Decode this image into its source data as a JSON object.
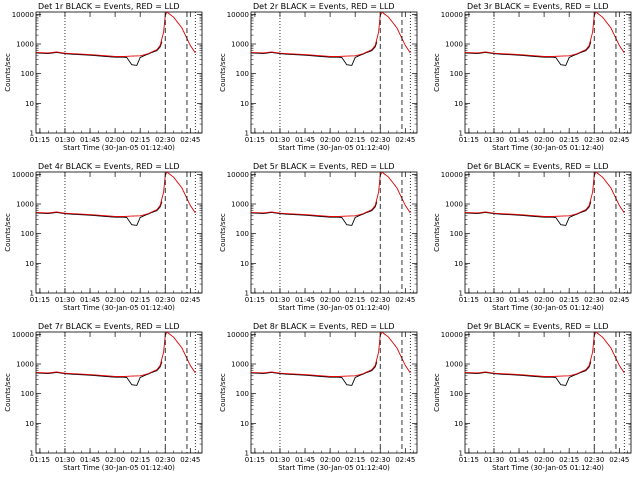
{
  "figure": {
    "background": "#ffffff",
    "event_color": "#000000",
    "lld_color": "#e00000"
  },
  "x_tick_labels": [
    "01:15",
    "01:30",
    "01:45",
    "02:00",
    "02:15",
    "02:30",
    "02:45"
  ],
  "y_tick_labels": [
    "1",
    "10",
    "100",
    "1000",
    "10000"
  ],
  "chart_data": [
    {
      "type": "line",
      "title": "Det 1r BLACK = Events, RED = LLD",
      "xlabel": "Start Time (30-Jan-05 01:12:40)",
      "ylabel": "Counts/sec",
      "ylog": true,
      "ylim": [
        1,
        12000
      ],
      "xlim_minutes": [
        "01:12:40",
        "02:52:00"
      ],
      "series": [
        {
          "name": "Events",
          "color": "#000000",
          "x": [
            "01:12:40",
            "01:20",
            "01:25",
            "01:30",
            "01:35",
            "01:45",
            "01:55",
            "02:00",
            "02:05",
            "02:07",
            "02:10",
            "02:13",
            "02:15",
            "02:18",
            "02:20",
            "02:22",
            "02:25",
            "02:27",
            "02:28"
          ],
          "y": [
            500,
            480,
            520,
            470,
            450,
            420,
            380,
            360,
            360,
            350,
            200,
            190,
            350,
            420,
            460,
            520,
            600,
            800,
            1200
          ]
        },
        {
          "name": "LLD",
          "color": "#e00000",
          "x": [
            "01:12:40",
            "01:20",
            "01:25",
            "01:30",
            "01:35",
            "01:45",
            "01:55",
            "02:00",
            "02:05",
            "02:10",
            "02:15",
            "02:18",
            "02:20",
            "02:22",
            "02:25",
            "02:27",
            "02:29",
            "02:30",
            "02:31",
            "02:35",
            "02:40",
            "02:45",
            "02:48"
          ],
          "y": [
            520,
            500,
            540,
            490,
            470,
            440,
            400,
            380,
            380,
            390,
            400,
            440,
            480,
            540,
            650,
            900,
            2500,
            9000,
            12000,
            8000,
            3500,
            900,
            500
          ]
        }
      ],
      "vlines_dotted": [
        "01:30",
        "02:48"
      ],
      "vlines_dashed": [
        "02:30",
        "02:43"
      ]
    },
    {
      "type": "line",
      "title": "Det 2r BLACK = Events, RED = LLD",
      "xlabel": "Start Time (30-Jan-05 01:12:40)",
      "ylabel": "Counts/sec"
    },
    {
      "type": "line",
      "title": "Det 3r BLACK = Events, RED = LLD",
      "xlabel": "Start Time (30-Jan-05 01:12:40)",
      "ylabel": "Counts/sec"
    },
    {
      "type": "line",
      "title": "Det 4r BLACK = Events, RED = LLD",
      "xlabel": "Start Time (30-Jan-05 01:12:40)",
      "ylabel": "Counts/sec"
    },
    {
      "type": "line",
      "title": "Det 5r BLACK = Events, RED = LLD",
      "xlabel": "Start Time (30-Jan-05 01:12:40)",
      "ylabel": "Counts/sec"
    },
    {
      "type": "line",
      "title": "Det 6r BLACK = Events, RED = LLD",
      "xlabel": "Start Time (30-Jan-05 01:12:40)",
      "ylabel": "Counts/sec"
    },
    {
      "type": "line",
      "title": "Det 7r BLACK = Events, RED = LLD",
      "xlabel": "Start Time (30-Jan-05 01:12:40)",
      "ylabel": "Counts/sec"
    },
    {
      "type": "line",
      "title": "Det 8r BLACK = Events, RED = LLD",
      "xlabel": "Start Time (30-Jan-05 01:12:40)",
      "ylabel": "Counts/sec"
    },
    {
      "type": "line",
      "title": "Det 9r BLACK = Events, RED = LLD",
      "xlabel": "Start Time (30-Jan-05 01:12:40)",
      "ylabel": "Counts/sec"
    }
  ]
}
